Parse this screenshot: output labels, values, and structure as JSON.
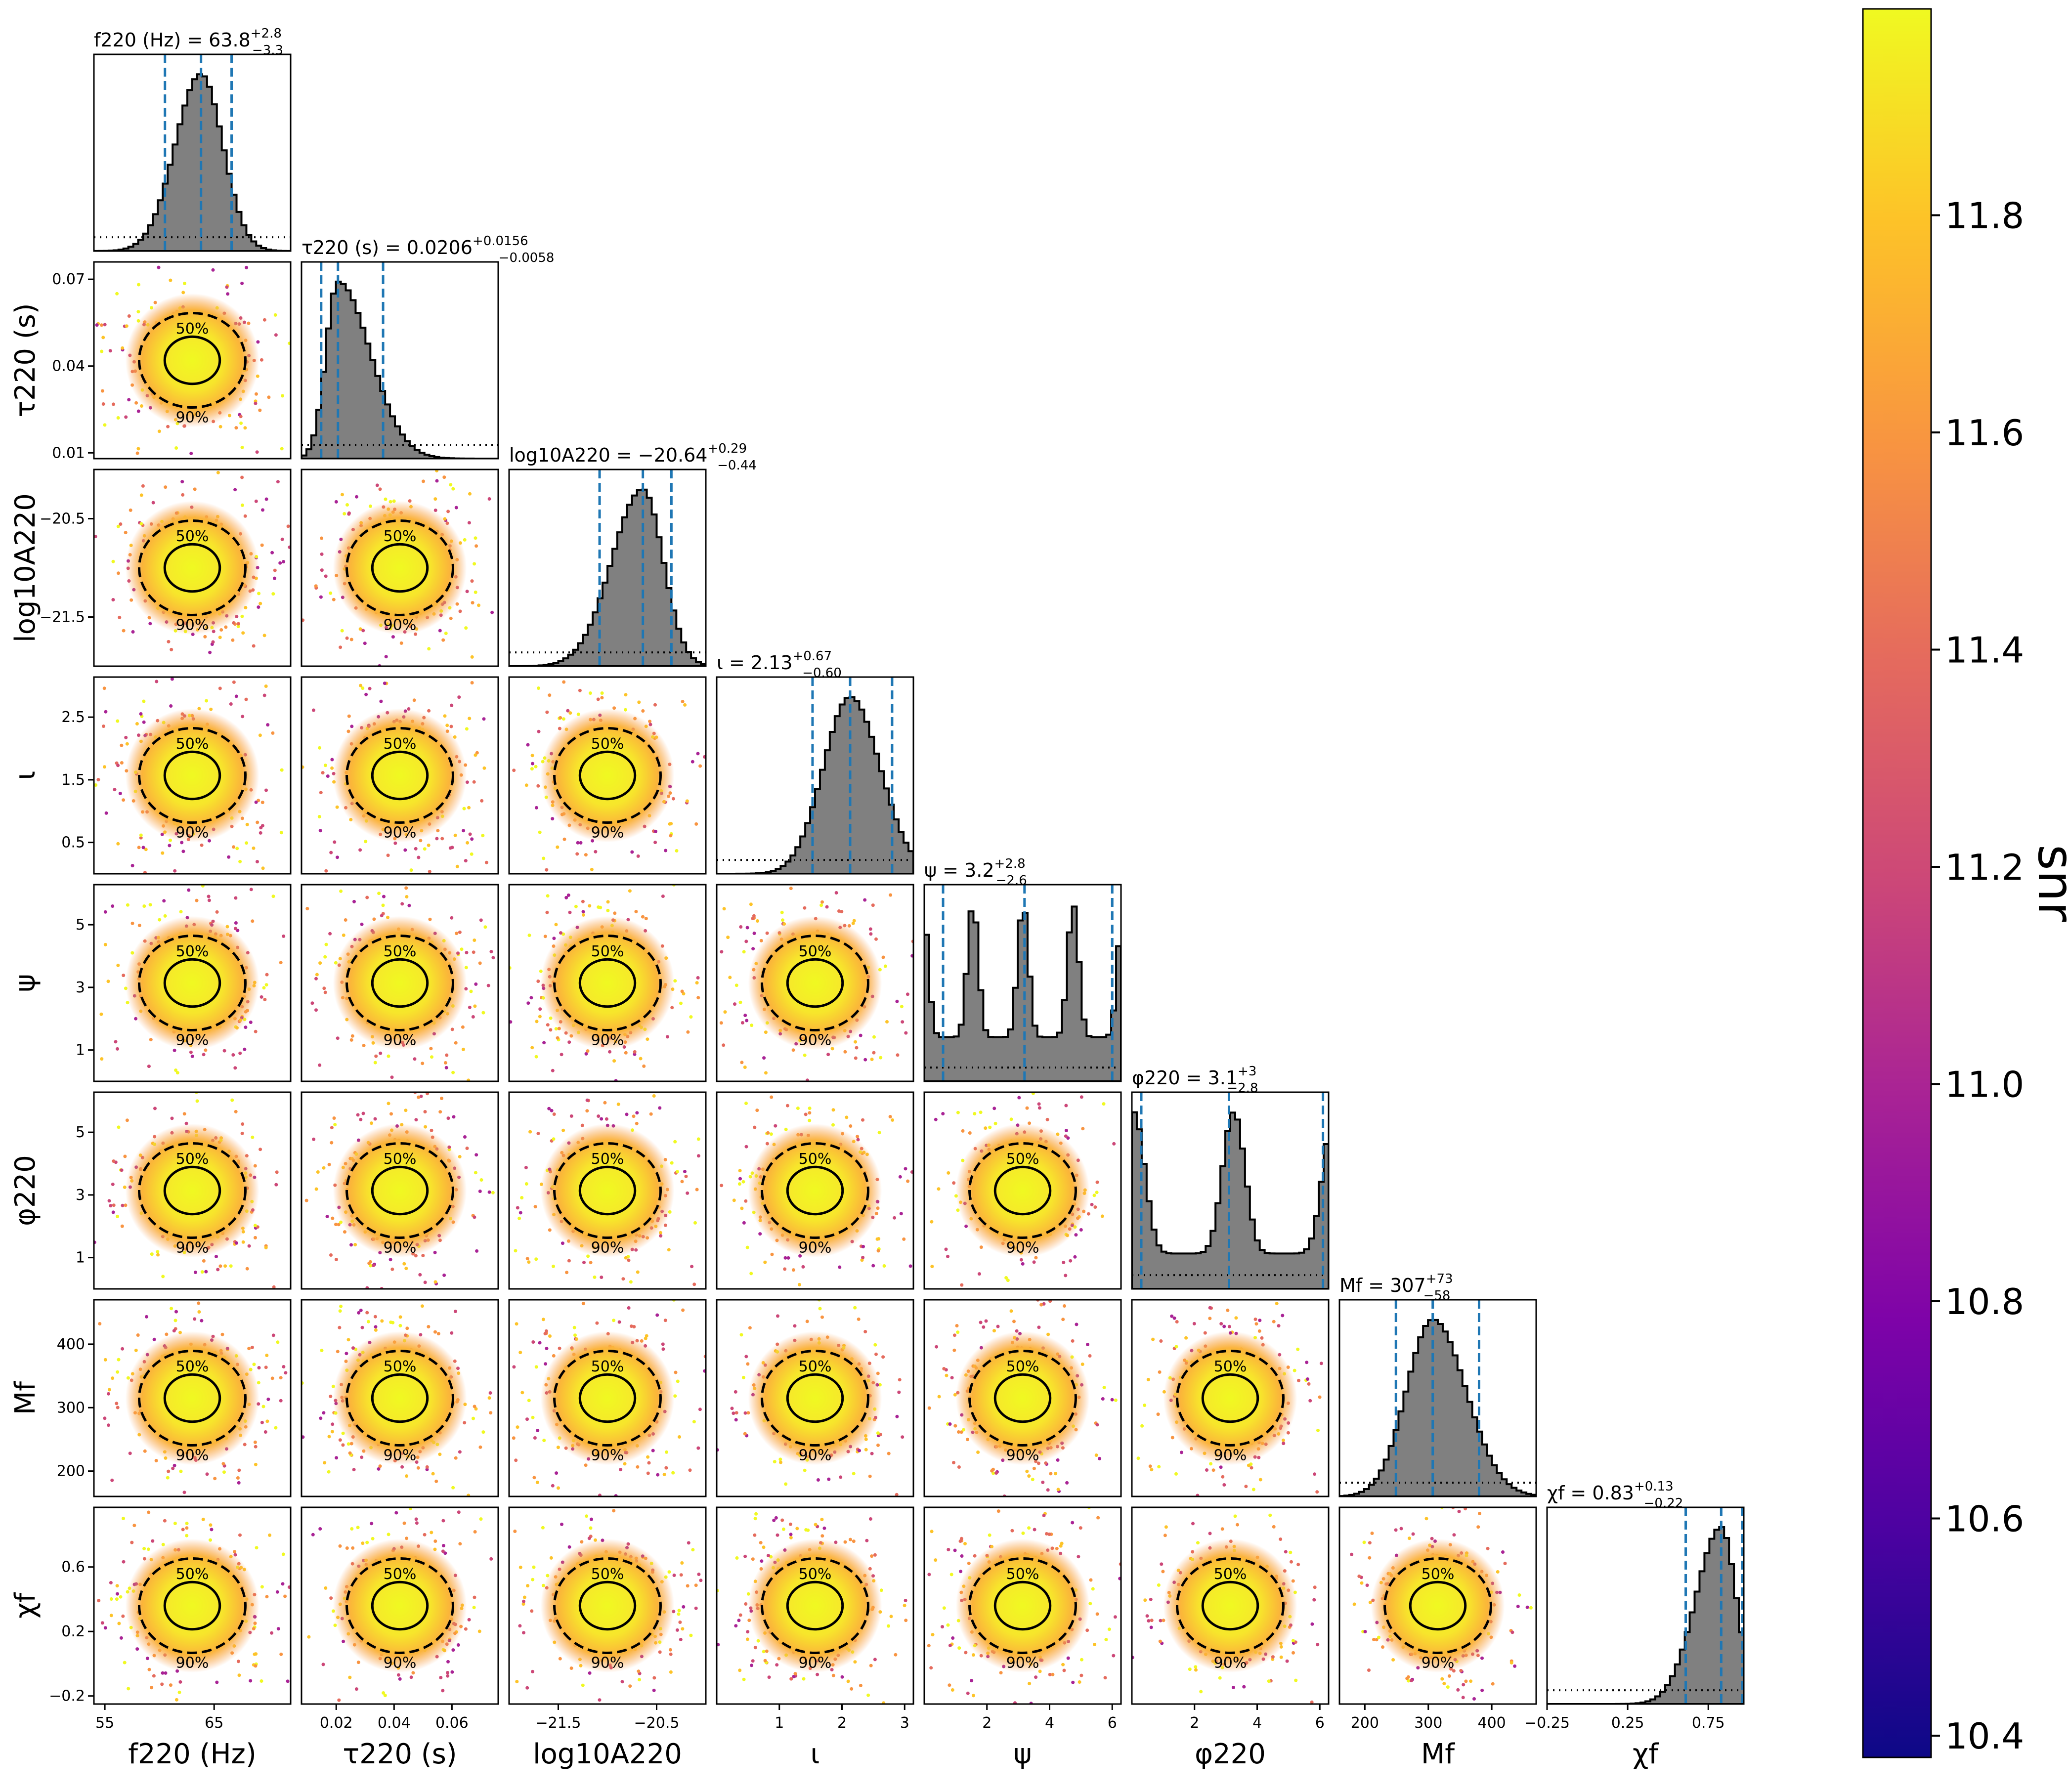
{
  "chart_data": {
    "type": "scatter",
    "subtype": "corner",
    "parameters": [
      {
        "key": "f220",
        "axis_label": "f220 (Hz)",
        "range": [
          54,
          72
        ],
        "ticks": [
          55,
          65
        ],
        "tick_labels": [
          "55",
          "65"
        ],
        "title_lhs": "f220 (Hz) =",
        "median": "63.8",
        "plus": "+2.8",
        "minus": "−3.3",
        "q": [
          60.5,
          63.8,
          66.6
        ]
      },
      {
        "key": "tau220",
        "axis_label": "τ220 (s)",
        "range": [
          0.008,
          0.076
        ],
        "ticks": [
          0.01,
          0.04,
          0.07
        ],
        "tick_labels": [
          "0.01",
          "0.04",
          "0.07"
        ],
        "xticks": [
          0.02,
          0.04,
          0.06
        ],
        "xtick_labels": [
          "0.02",
          "0.04",
          "0.06"
        ],
        "title_lhs": "τ220 (s) =",
        "median": "0.0206",
        "plus": "+0.0156",
        "minus": "−0.0058",
        "q": [
          0.0148,
          0.0206,
          0.0362
        ]
      },
      {
        "key": "logA220",
        "axis_label": "log10A220",
        "range": [
          -22.0,
          -20.0
        ],
        "ticks": [
          -20.5,
          -21.5
        ],
        "tick_labels": [
          "−20.5",
          "−21.5"
        ],
        "xticks": [
          -21.5,
          -20.5
        ],
        "xtick_labels": [
          "−21.5",
          "−20.5"
        ],
        "title_lhs": "log10A220 =",
        "median": "−20.64",
        "plus": "+0.29",
        "minus": "−0.44",
        "q": [
          -21.08,
          -20.64,
          -20.35
        ]
      },
      {
        "key": "iota",
        "axis_label": "ι",
        "range": [
          0.0,
          3.14
        ],
        "ticks": [
          2.5,
          1.5,
          0.5
        ],
        "tick_labels": [
          "2.5",
          "1.5",
          "0.5"
        ],
        "xticks": [
          1,
          2,
          3
        ],
        "xtick_labels": [
          "1",
          "2",
          "3"
        ],
        "title_lhs": "ι =",
        "median": "2.13",
        "plus": "+0.67",
        "minus": "−0.60",
        "q": [
          1.53,
          2.13,
          2.8
        ]
      },
      {
        "key": "psi",
        "axis_label": "ψ",
        "range": [
          0.0,
          6.28
        ],
        "ticks": [
          5,
          3,
          1
        ],
        "tick_labels": [
          "5",
          "3",
          "1"
        ],
        "xticks": [
          2,
          4,
          6
        ],
        "xtick_labels": [
          "2",
          "4",
          "6"
        ],
        "title_lhs": "ψ =",
        "median": "3.2",
        "plus": "+2.8",
        "minus": "−2.6",
        "q": [
          0.6,
          3.2,
          6.0
        ]
      },
      {
        "key": "phi220",
        "axis_label": "φ220",
        "range": [
          0.0,
          6.28
        ],
        "ticks": [
          5,
          3,
          1
        ],
        "tick_labels": [
          "5",
          "3",
          "1"
        ],
        "xticks": [
          2,
          4,
          6
        ],
        "xtick_labels": [
          "2",
          "4",
          "6"
        ],
        "title_lhs": "φ220 =",
        "median": "3.1",
        "plus": "+3",
        "minus": "−2.8",
        "q": [
          0.3,
          3.1,
          6.1
        ]
      },
      {
        "key": "Mf",
        "axis_label": "Mf",
        "range": [
          160,
          470
        ],
        "ticks": [
          400,
          300,
          200
        ],
        "tick_labels": [
          "400",
          "300",
          "200"
        ],
        "xticks": [
          200,
          300,
          400
        ],
        "xtick_labels": [
          "200",
          "300",
          "400"
        ],
        "title_lhs": "Mf =",
        "median": "307",
        "plus": "+73",
        "minus": "−58",
        "q": [
          249,
          307,
          380
        ]
      },
      {
        "key": "chif",
        "axis_label": "χf",
        "range": [
          -0.25,
          0.97
        ],
        "ticks": [
          0.6,
          0.2,
          -0.2
        ],
        "tick_labels": [
          "0.6",
          "0.2",
          "−0.2"
        ],
        "xticks": [
          -0.25,
          0.25,
          0.75
        ],
        "xtick_labels": [
          "−0.25",
          "0.25",
          "0.75"
        ],
        "title_lhs": "χf =",
        "median": "0.83",
        "plus": "+0.13",
        "minus": "−0.22",
        "q": [
          0.61,
          0.83,
          0.96
        ]
      }
    ],
    "xlabels": [
      "f220 (Hz)",
      "τ220 (s)",
      "log10A220",
      "ι",
      "ψ",
      "φ220",
      "Mf",
      "χf"
    ],
    "first_column_xticks": [
      55,
      65
    ],
    "contour_levels": [
      "50%",
      "90%"
    ],
    "colorbar": {
      "label": "snr",
      "range": [
        10.38,
        11.99
      ],
      "ticks": [
        10.4,
        10.6,
        10.8,
        11.0,
        11.2,
        11.4,
        11.6,
        11.8
      ],
      "tick_labels": [
        "10.4",
        "10.6",
        "10.8",
        "11.0",
        "11.2",
        "11.4",
        "11.6",
        "11.8"
      ],
      "colormap": "plasma"
    },
    "colors": {
      "quantile_line": "#1f77b4",
      "histogram_fill": "#808080",
      "contour": "#000000"
    }
  }
}
